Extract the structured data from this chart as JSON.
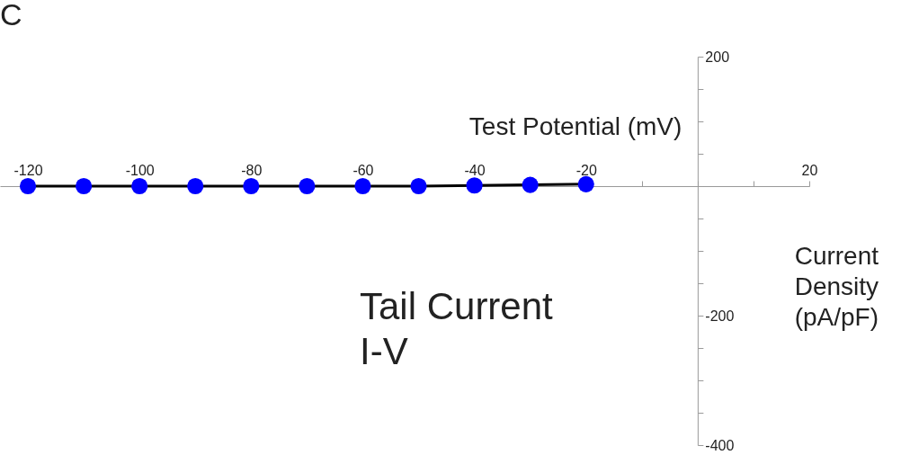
{
  "chart_data": {
    "type": "line",
    "title": "C",
    "xlabel": "Test Potential (mV)",
    "ylabel": "Current Density (pA/pF)",
    "annotations": [
      "Tail Current I-V"
    ],
    "x": [
      -120,
      -110,
      -100,
      -90,
      -80,
      -70,
      -60,
      -50,
      -40,
      -30,
      -20
    ],
    "series": [
      {
        "color": "#0000ff",
        "values": [
          0,
          0,
          0,
          0,
          0,
          0,
          0,
          0,
          1,
          2,
          3
        ]
      }
    ],
    "xlim": [
      -125,
      20
    ],
    "xticks": [
      -120,
      {
        "value": -110,
        "label": null
      },
      -100,
      {
        "value": -90,
        "label": null
      },
      -80,
      {
        "value": -70,
        "label": null
      },
      -60,
      {
        "value": -50,
        "label": null
      },
      -40,
      {
        "value": -30,
        "label": null
      },
      -20,
      {
        "value": -10,
        "label": null
      },
      {
        "value": 0,
        "label": null
      },
      {
        "value": 10,
        "label": null
      },
      20
    ],
    "ylim": [
      -400,
      200
    ],
    "yticks": [
      200,
      {
        "value": 150,
        "label": null
      },
      {
        "value": 100,
        "label": null
      },
      {
        "value": 50,
        "label": null
      },
      {
        "value": 0,
        "label": null
      },
      {
        "value": -50,
        "label": null
      },
      {
        "value": -100,
        "label": null
      },
      {
        "value": -150,
        "label": null
      },
      -200,
      {
        "value": -250,
        "label": null
      },
      {
        "value": -300,
        "label": null
      },
      {
        "value": -350,
        "label": null
      },
      -400
    ],
    "grid": false,
    "marker": "circle",
    "line_style": "solid"
  }
}
